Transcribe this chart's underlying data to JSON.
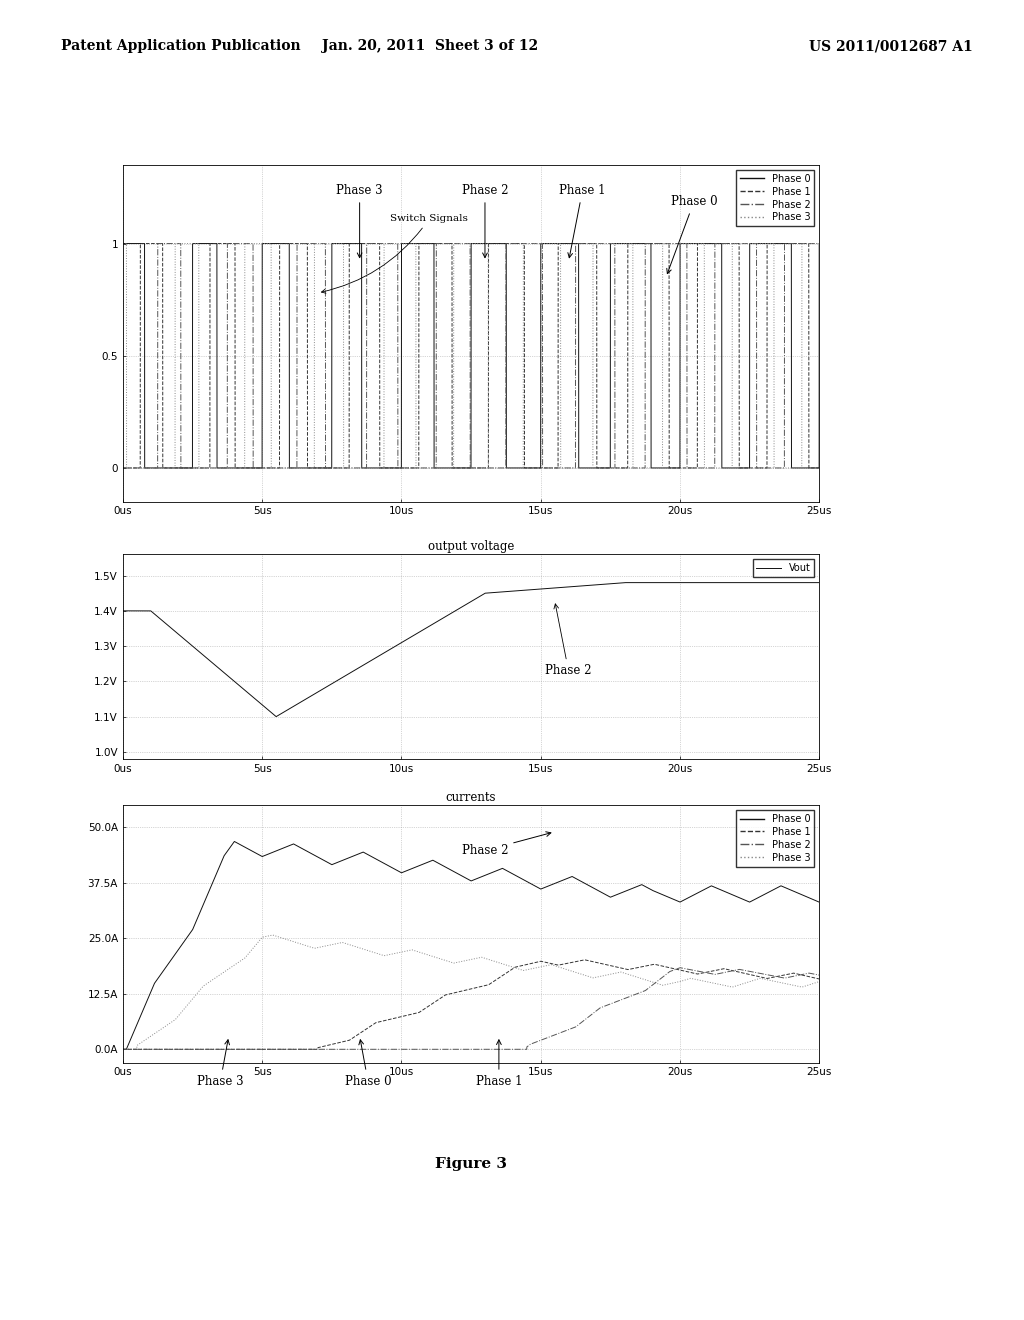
{
  "header_left": "Patent Application Publication",
  "header_center": "Jan. 20, 2011  Sheet 3 of 12",
  "header_right": "US 2011/0012687 A1",
  "figure_label": "Figure 3",
  "bg_color": "#ffffff",
  "grid_color": "#999999",
  "phase_colors": [
    "#111111",
    "#333333",
    "#555555",
    "#888888"
  ],
  "phase_linestyles": [
    "-",
    "--",
    "-.",
    ":"
  ],
  "time_ticks": [
    0,
    5,
    10,
    15,
    20,
    25
  ],
  "subplot1_yticks": [
    0,
    0.5,
    1
  ],
  "subplot1_yticklabels": [
    "0",
    "0.5",
    "1"
  ],
  "subplot1_ylim": [
    -0.15,
    1.35
  ],
  "subplot2_yticks": [
    1.0,
    1.1,
    1.2,
    1.3,
    1.4,
    1.5
  ],
  "subplot2_yticklabels": [
    "1.0V",
    "1.1V",
    "1.2V",
    "1.3V",
    "1.4V",
    "1.5V"
  ],
  "subplot2_ylim": [
    0.98,
    1.56
  ],
  "subplot3_yticks": [
    0,
    12.5,
    25.0,
    37.5,
    50.0
  ],
  "subplot3_yticklabels": [
    "0.0A",
    "12.5A",
    "25.0A",
    "37.5A",
    "50.0A"
  ],
  "subplot3_ylim": [
    -3,
    55
  ]
}
